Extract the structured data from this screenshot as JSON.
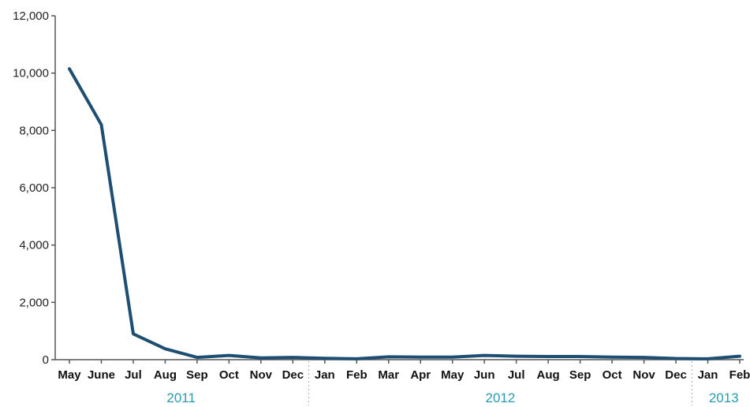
{
  "chart_data": {
    "type": "line",
    "x": [
      "May",
      "June",
      "Jul",
      "Aug",
      "Sep",
      "Oct",
      "Nov",
      "Dec",
      "Jan",
      "Feb",
      "Mar",
      "Apr",
      "May",
      "Jun",
      "Jul",
      "Aug",
      "Sep",
      "Oct",
      "Nov",
      "Dec",
      "Jan",
      "Feb"
    ],
    "year_groups": [
      {
        "label": "2011",
        "start": 0,
        "end": 7
      },
      {
        "label": "2012",
        "start": 8,
        "end": 19
      },
      {
        "label": "2013",
        "start": 20,
        "end": 21
      }
    ],
    "series": [
      {
        "values": [
          10150,
          8200,
          900,
          380,
          80,
          150,
          60,
          80,
          50,
          30,
          100,
          90,
          90,
          150,
          120,
          110,
          110,
          90,
          80,
          40,
          30,
          120
        ]
      }
    ],
    "yticks": [
      "0",
      "2,000",
      "4,000",
      "6,000",
      "8,000",
      "10,000",
      "12,000"
    ],
    "ylim": [
      0,
      12000
    ],
    "grid": false,
    "colors": {
      "line": "#1e4f73",
      "axis": "#555555",
      "year": "#2a9bb0",
      "divider": "#aaaaaa"
    }
  }
}
